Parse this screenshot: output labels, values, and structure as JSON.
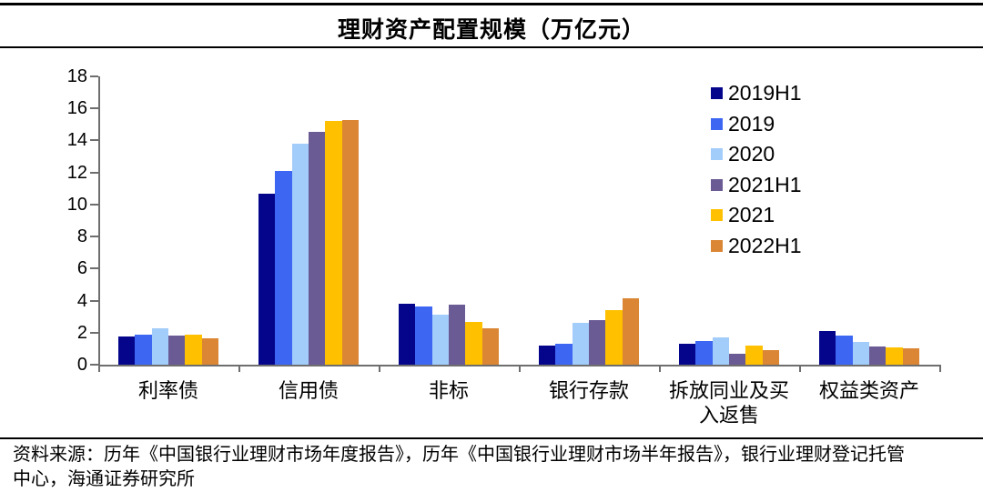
{
  "title": "理财资产配置规模（万亿元）",
  "footer": {
    "lines": [
      "资料来源：历年《中国银行业理财市场年度报告》，历年《中国银行业理财市场半年报告》，银行业理财登记托管",
      "中心，海通证券研究所"
    ]
  },
  "chart_data": {
    "type": "bar",
    "title": "理财资产配置规模（万亿元）",
    "unit": "万亿元",
    "categories": [
      "利率债",
      "信用债",
      "非标",
      "银行存款",
      "拆放同业及买入返售",
      "权益类资产"
    ],
    "category_display": [
      "利率债",
      "信用债",
      "非标",
      "银行存款",
      "拆放同业及买\n入返售",
      "权益类资产"
    ],
    "series": [
      {
        "name": "2019H1",
        "color": "#05058B",
        "values": [
          1.75,
          10.7,
          3.8,
          1.2,
          1.3,
          2.1
        ]
      },
      {
        "name": "2019",
        "color": "#3D66F2",
        "values": [
          1.9,
          12.1,
          3.65,
          1.3,
          1.5,
          1.8
        ]
      },
      {
        "name": "2020",
        "color": "#A2CCFA",
        "values": [
          2.25,
          13.8,
          3.15,
          2.6,
          1.7,
          1.4
        ]
      },
      {
        "name": "2021H1",
        "color": "#6B5B94",
        "values": [
          1.8,
          14.55,
          3.75,
          2.8,
          0.7,
          1.15
        ]
      },
      {
        "name": "2021",
        "color": "#FFC000",
        "values": [
          1.9,
          15.2,
          2.65,
          3.4,
          1.2,
          1.1
        ]
      },
      {
        "name": "2022H1",
        "color": "#DA8634",
        "values": [
          1.65,
          15.3,
          2.25,
          4.15,
          0.9,
          1.05
        ]
      }
    ],
    "ylim": [
      0,
      18
    ],
    "yticks": [
      0,
      2,
      4,
      6,
      8,
      10,
      12,
      14,
      16,
      18
    ],
    "grid": false,
    "legend_position": "top-right-inside",
    "axis_color": "#6e6e6e"
  }
}
